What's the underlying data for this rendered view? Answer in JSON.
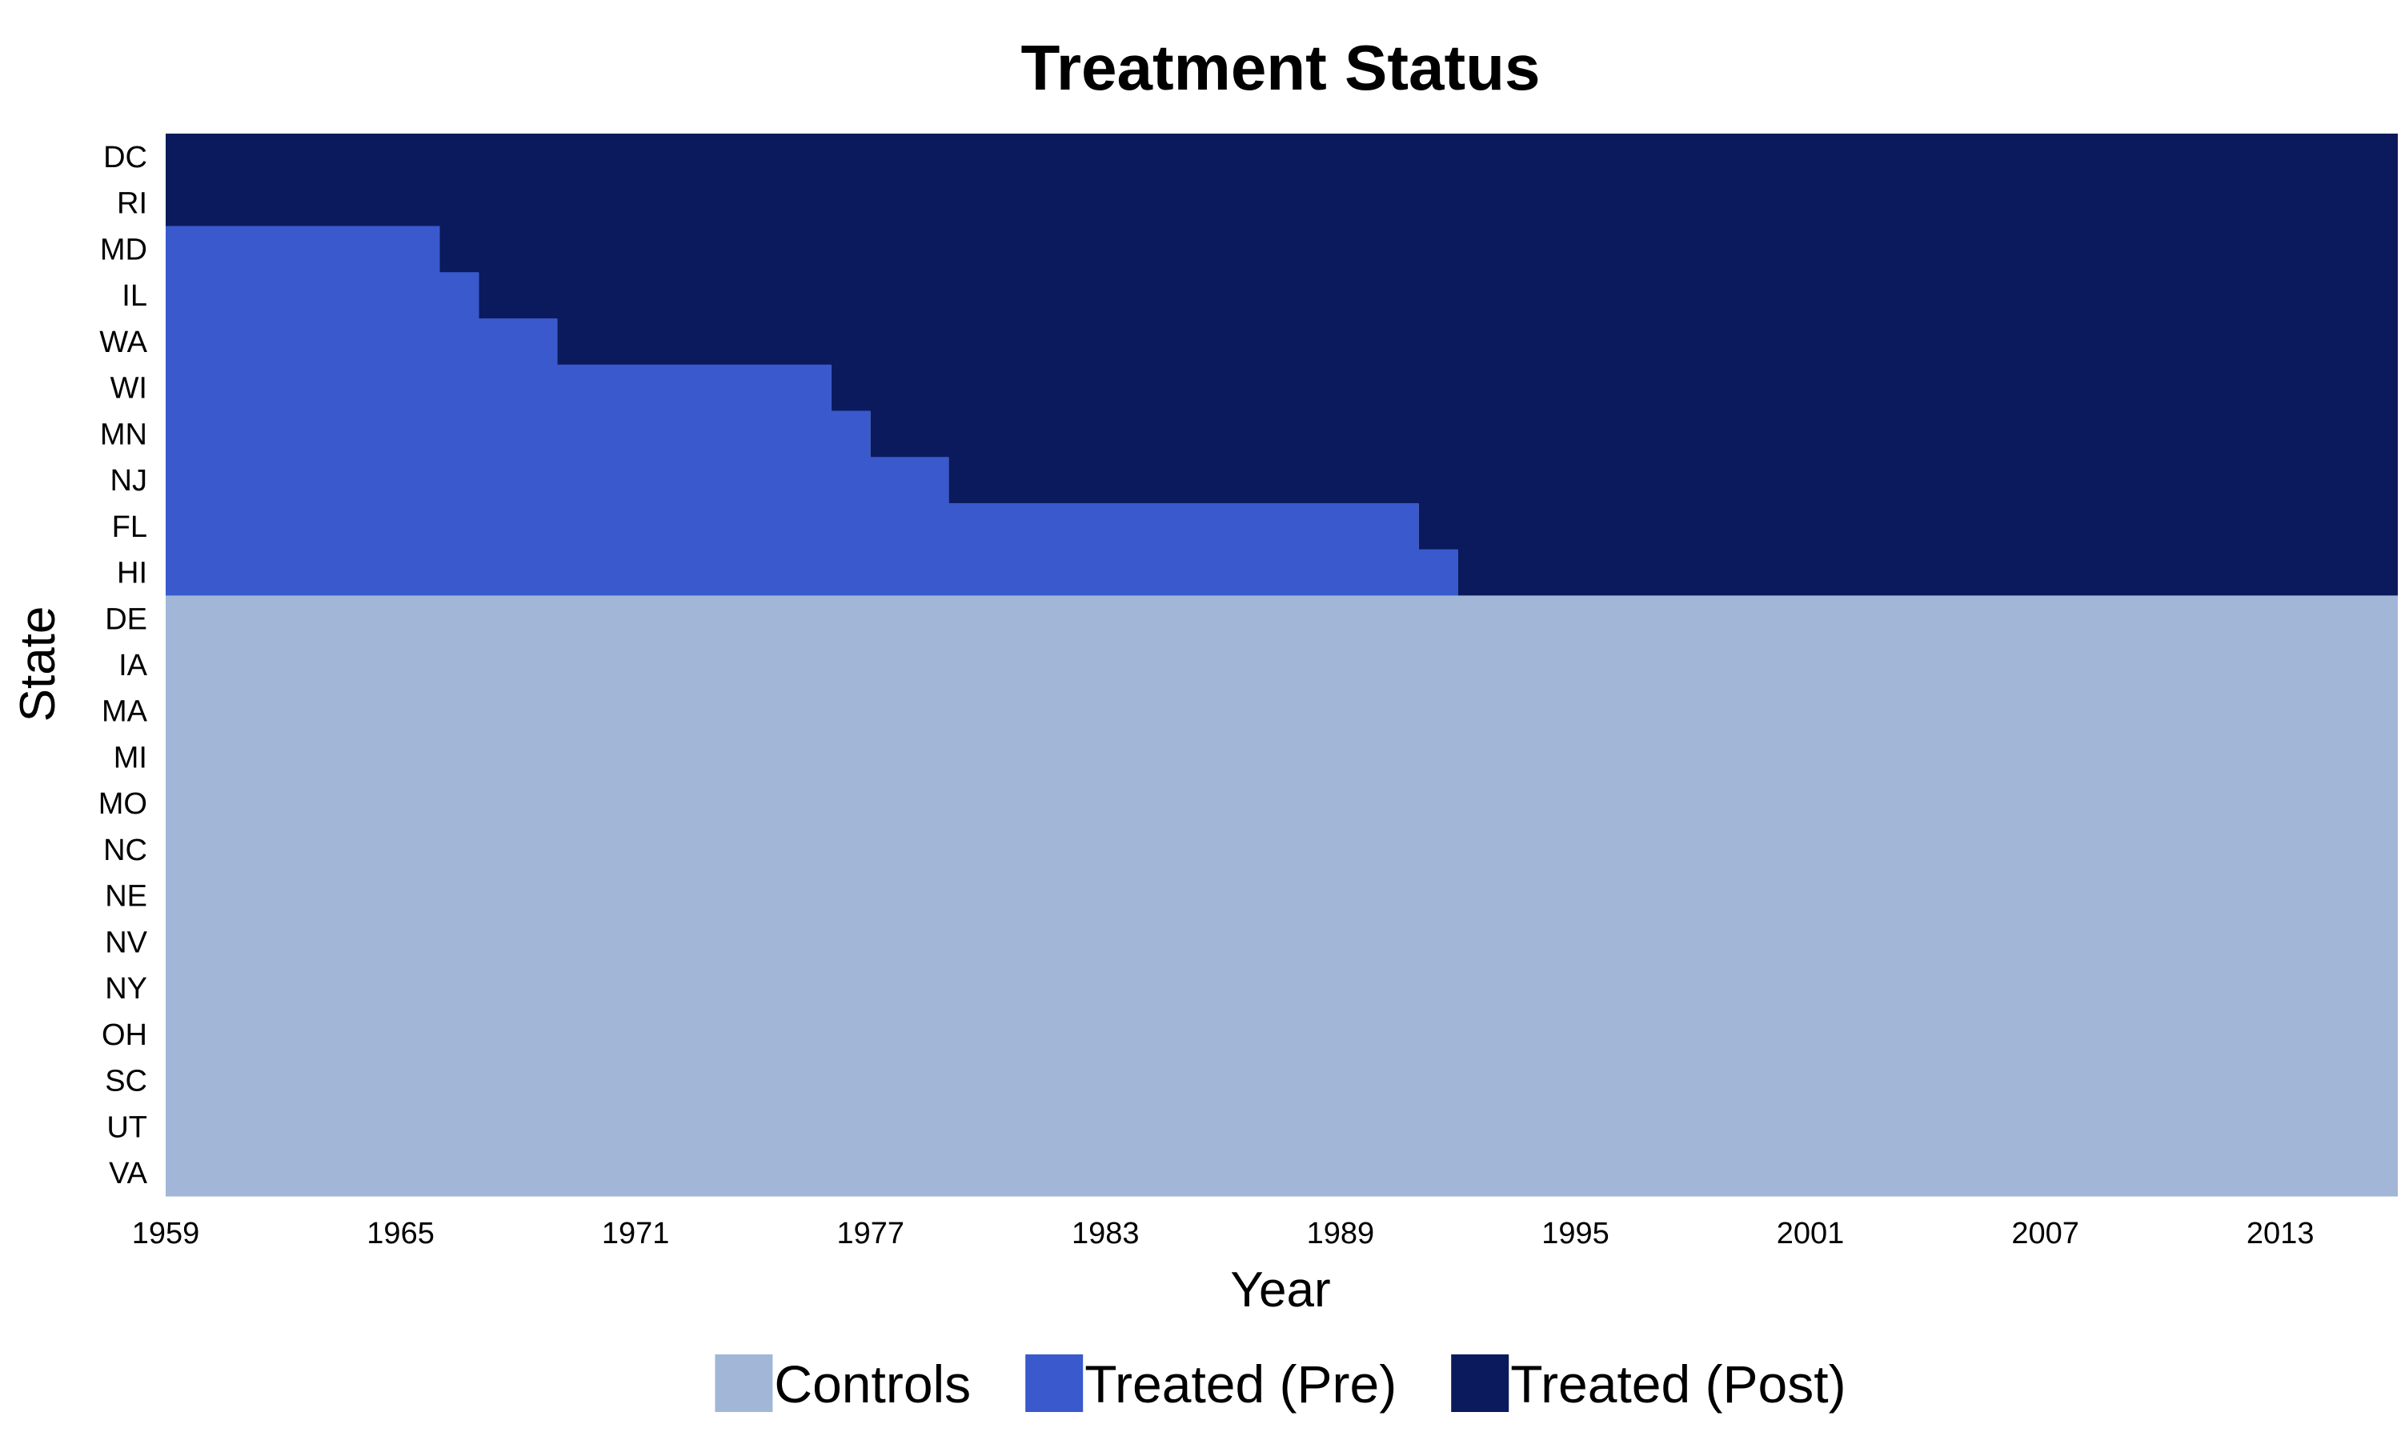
{
  "chart_data": {
    "type": "heatmap",
    "title": "Treatment Status",
    "xlabel": "Year",
    "ylabel": "State",
    "xlim": [
      1959,
      2016
    ],
    "x_ticks": [
      1959,
      1965,
      1971,
      1977,
      1983,
      1989,
      1995,
      2001,
      2007,
      2013
    ],
    "states": [
      "DC",
      "RI",
      "MD",
      "IL",
      "WA",
      "WI",
      "MN",
      "NJ",
      "FL",
      "HI",
      "DE",
      "IA",
      "MA",
      "MI",
      "MO",
      "NC",
      "NE",
      "NV",
      "NY",
      "OH",
      "SC",
      "UT",
      "VA"
    ],
    "treatment_start_year": {
      "DC": 1959,
      "RI": 1959,
      "MD": 1966,
      "IL": 1967,
      "WA": 1969,
      "WI": 1976,
      "MN": 1977,
      "NJ": 1979,
      "FL": 1991,
      "HI": 1992
    },
    "legend": [
      {
        "key": "control",
        "label": "Controls",
        "color": "#A2B7D7"
      },
      {
        "key": "pre",
        "label": "Treated (Pre)",
        "color": "#3959CC"
      },
      {
        "key": "post",
        "label": "Treated (Post)",
        "color": "#0B1A5C"
      }
    ],
    "grid": false,
    "legend_position": "bottom"
  }
}
